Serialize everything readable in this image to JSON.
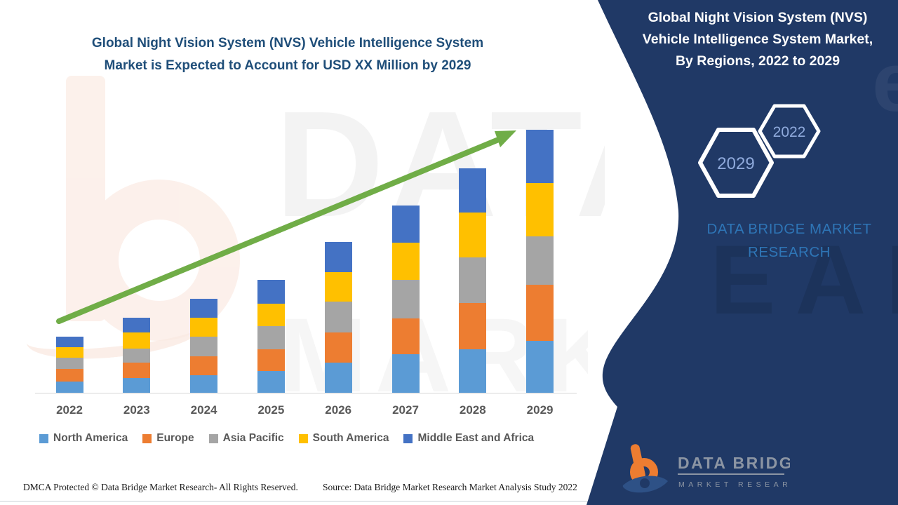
{
  "header": {
    "title_line1": "Global Night Vision System (NVS) Vehicle Intelligence System",
    "title_line2": "Market is Expected to Account for USD XX Million by 2029"
  },
  "side_panel": {
    "title_lines": [
      "Global Night Vision System (NVS)",
      "Vehicle Intelligence System Market,",
      "By Regions, 2022 to 2029"
    ],
    "hexagon_labels": [
      "2022",
      "2029"
    ],
    "brand_line1": "DATA BRIDGE MARKET",
    "brand_line2": "RESEARCH",
    "logo": {
      "name": "DATA BRIDGE",
      "tagline": "MARKET RESEARCH"
    },
    "colors": {
      "panel_background": "#203966",
      "brand_text": "#2e75b6",
      "hexagon_outline": "#ffffff",
      "hexagon_label": "#8faadc",
      "logo_orange": "#ED7D31"
    }
  },
  "watermark": {
    "top_word": "DATA B",
    "bottom_word": "MARKET RE",
    "panel_word": "EARCH",
    "panel_letter": "e"
  },
  "chart_data": {
    "type": "bar",
    "stacked": true,
    "title": "Global Night Vision System (NVS) Vehicle Intelligence System Market, By Regions, 2022 to 2029",
    "xlabel": "",
    "ylabel": "",
    "y_axis_visible": false,
    "value_note": "values unlabeled in source (USD XX Million); numbers are relative heights measured in px, baseline-equal-scale",
    "ylim": [
      0,
      400
    ],
    "legend_position": "bottom",
    "trend_arrow": true,
    "trend_arrow_color": "#70ad47",
    "categories": [
      "2022",
      "2023",
      "2024",
      "2025",
      "2026",
      "2027",
      "2028",
      "2029"
    ],
    "series": [
      {
        "name": "North America",
        "color": "#5B9BD5",
        "values": [
          16,
          21,
          25,
          31,
          43,
          55,
          62,
          74
        ]
      },
      {
        "name": "Europe",
        "color": "#ED7D31",
        "values": [
          18,
          22,
          27,
          31,
          43,
          51,
          66,
          80
        ]
      },
      {
        "name": "Asia Pacific",
        "color": "#A5A5A5",
        "values": [
          16,
          20,
          28,
          33,
          44,
          55,
          65,
          69
        ]
      },
      {
        "name": "South America",
        "color": "#FFC000",
        "values": [
          15,
          23,
          27,
          32,
          42,
          53,
          64,
          76
        ]
      },
      {
        "name": "Middle East and Africa",
        "color": "#4472C4",
        "values": [
          15,
          21,
          27,
          34,
          43,
          53,
          63,
          76
        ]
      }
    ],
    "totals": [
      80,
      107,
      134,
      161,
      215,
      267,
      320,
      375
    ]
  },
  "footer": {
    "left": "DMCA Protected © Data Bridge Market Research- All Rights Reserved.",
    "right": "Source: Data Bridge Market Research Market Analysis Study 2022"
  }
}
